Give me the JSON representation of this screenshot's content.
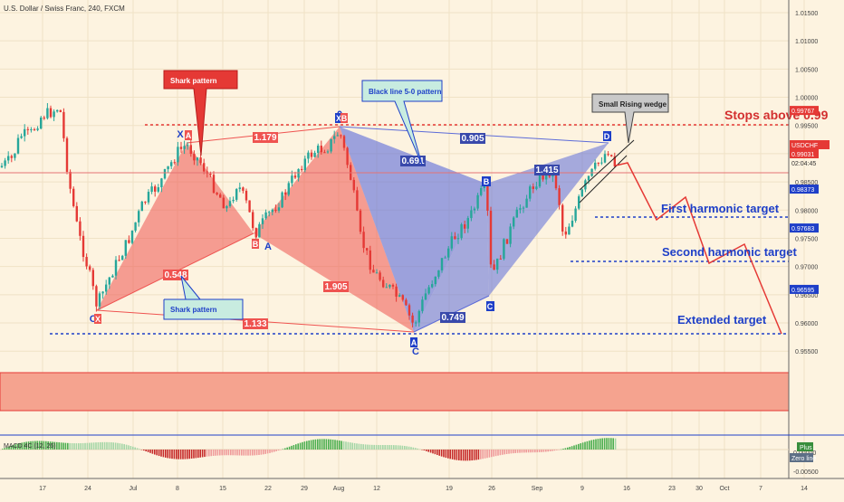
{
  "header": {
    "title": "U.S. Dollar / Swiss Franc, 240, FXCM"
  },
  "chart_data": {
    "type": "candlestick",
    "symbol": "USDCHF",
    "ylim": [
      0.943,
      1.017
    ],
    "y_ticks": [
      "1.01500",
      "1.01000",
      "1.00500",
      "1.00000",
      "0.99500",
      "0.99000",
      "0.98500",
      "0.98000",
      "0.97500",
      "0.97000",
      "0.96500",
      "0.96000",
      "0.95500"
    ],
    "x_ticks": [
      "17",
      "24",
      "Jul",
      "8",
      "15",
      "22",
      "29",
      "Aug",
      "12",
      "19",
      "26",
      "Sep",
      "9",
      "16",
      "23",
      "30",
      "Oct",
      "7",
      "14"
    ],
    "price_badges": [
      {
        "value": "0.99767",
        "color": "#e53935",
        "kind": "stop"
      },
      {
        "value": "0.99031",
        "color": "#e53935",
        "kind": "last",
        "label": "USDCHF",
        "countdown": "02:04:45"
      },
      {
        "value": "0.98373",
        "color": "#1e3fc8",
        "kind": "target"
      },
      {
        "value": "0.97683",
        "color": "#1e3fc8",
        "kind": "target"
      },
      {
        "value": "0.96595",
        "color": "#1e3fc8",
        "kind": "target"
      }
    ],
    "annotations": {
      "stops_text": "Stops above 0.99",
      "first_target": "First harmonic target",
      "second_target": "Second harmonic target",
      "extended_target": "Extended target",
      "callout_shark_red": "Shark pattern",
      "callout_shark_green": "Shark pattern",
      "callout_black_line": "Black line 5-0 pattern",
      "callout_wedge": "Small Rising wedge"
    },
    "ratios": {
      "r1179": "1.179",
      "r0548": "0.548",
      "r1133": "1.133",
      "r1905": "1.905",
      "r0905": "0.905",
      "r0691": "0.691",
      "r1415": "1.415",
      "r0749": "0.749"
    },
    "points": {
      "X1": "X",
      "A1": "A",
      "B1": "B",
      "A2": "A",
      "O1": "O",
      "X2": "X",
      "P0": "0",
      "X3": "X",
      "B2": "B",
      "A3": "A",
      "C1": "C",
      "C2": "C",
      "D1": "D",
      "B3": "B"
    },
    "macd": {
      "label": "MACD 4C (12, 26)",
      "ticks": [
        "0.00000",
        "-0.00500"
      ],
      "badge_plus": "Plus",
      "badge_zero": "Zero line"
    }
  }
}
